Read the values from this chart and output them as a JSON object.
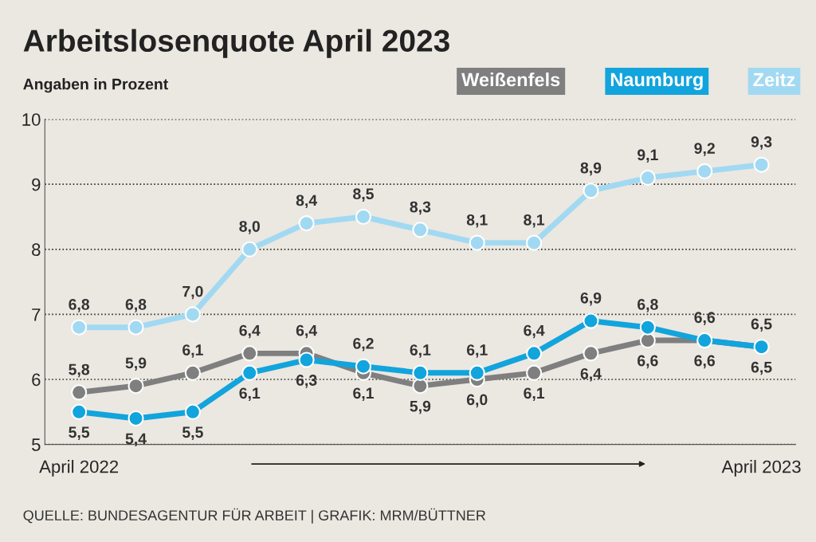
{
  "chart_data": {
    "type": "line",
    "title": "Arbeitslosenquote April 2023",
    "subtitle": "Angaben in Prozent",
    "categories": [
      "April 2022",
      null,
      null,
      null,
      null,
      null,
      null,
      null,
      null,
      null,
      null,
      null,
      "April 2023"
    ],
    "series": [
      {
        "name": "Weißenfels",
        "color": "#7f7f80",
        "values": [
          5.8,
          5.9,
          6.1,
          6.4,
          6.4,
          6.1,
          5.9,
          6.0,
          6.1,
          6.4,
          6.6,
          6.6,
          6.5
        ],
        "value_labels": [
          "5,8",
          "5,9",
          "6,1",
          "6,4",
          "6,4",
          "6,1",
          "5,9",
          "6,0",
          "6,1",
          "6,4",
          "6,6",
          "6,6",
          "6,5"
        ]
      },
      {
        "name": "Naumburg",
        "color": "#12a4dc",
        "values": [
          5.5,
          5.4,
          5.5,
          6.1,
          6.3,
          6.2,
          6.1,
          6.1,
          6.4,
          6.9,
          6.8,
          6.6,
          6.5
        ],
        "value_labels": [
          "5,5",
          "5,4",
          "5,5",
          "6,1",
          "6,3",
          "6,2",
          "6,1",
          "6,1",
          "6,4",
          "6,9",
          "6,8",
          "6,6",
          "6,5"
        ]
      },
      {
        "name": "Zeitz",
        "color": "#a2d9f2",
        "values": [
          6.8,
          6.8,
          7.0,
          8.0,
          8.4,
          8.5,
          8.3,
          8.1,
          8.1,
          8.9,
          9.1,
          9.2,
          9.3
        ],
        "value_labels": [
          "6,8",
          "6,8",
          "7,0",
          "8,0",
          "8,4",
          "8,5",
          "8,3",
          "8,1",
          "8,1",
          "8,9",
          "9,1",
          "9,2",
          "9,3"
        ]
      }
    ],
    "ylim": [
      5,
      10
    ],
    "yticks": [
      5,
      6,
      7,
      8,
      9,
      10
    ],
    "grid": "y",
    "legend": "top right",
    "marker": "circle",
    "line_style": "solid",
    "annotations": [
      "QUELLE: BUNDESAGENTUR FÜR ARBEIT | GRAFIK: MRM/BÜTTNER"
    ]
  }
}
